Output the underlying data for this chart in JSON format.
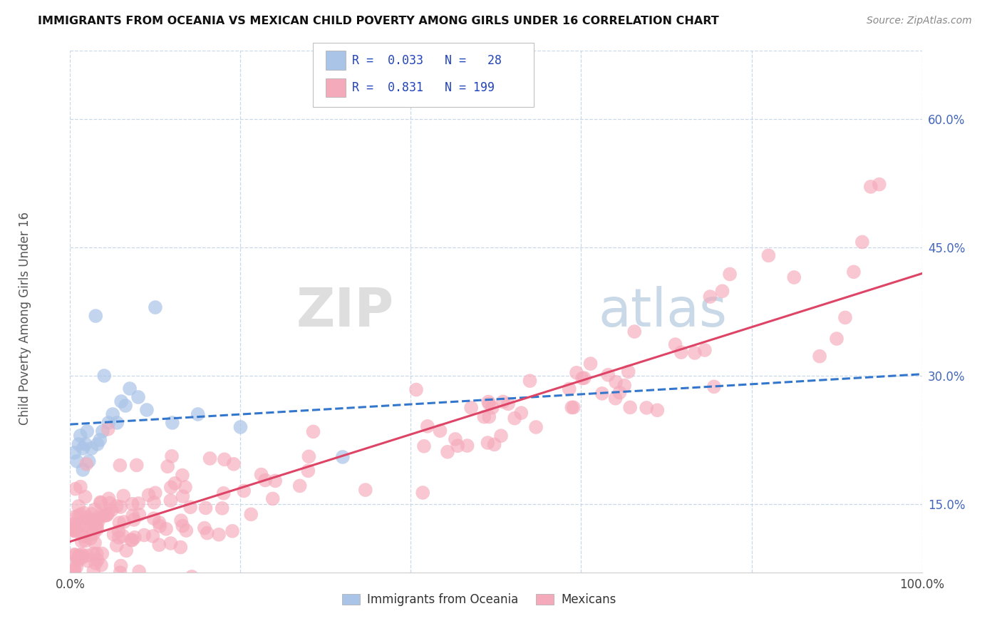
{
  "title": "IMMIGRANTS FROM OCEANIA VS MEXICAN CHILD POVERTY AMONG GIRLS UNDER 16 CORRELATION CHART",
  "source_text": "Source: ZipAtlas.com",
  "ylabel": "Child Poverty Among Girls Under 16",
  "xlim": [
    0.0,
    1.0
  ],
  "ylim": [
    0.07,
    0.68
  ],
  "x_ticks": [
    0.0,
    0.2,
    0.4,
    0.6,
    0.8,
    1.0
  ],
  "x_tick_labels": [
    "0.0%",
    "",
    "",
    "",
    "",
    "100.0%"
  ],
  "y_tick_labels": [
    "15.0%",
    "30.0%",
    "45.0%",
    "60.0%"
  ],
  "y_ticks": [
    0.15,
    0.3,
    0.45,
    0.6
  ],
  "oceania_color": "#aac4e8",
  "mexican_color": "#f5aabb",
  "oceania_line_color": "#3377cc",
  "mexican_line_color": "#dd4466",
  "background_color": "#ffffff",
  "grid_color": "#c8d8e8",
  "watermark_color": "#d0dce8",
  "legend_label_oceania": "Immigrants from Oceania",
  "legend_label_mexican": "Mexicans",
  "title_color": "#111111",
  "source_color": "#888888",
  "tick_color": "#4466bb",
  "label_color": "#555555"
}
